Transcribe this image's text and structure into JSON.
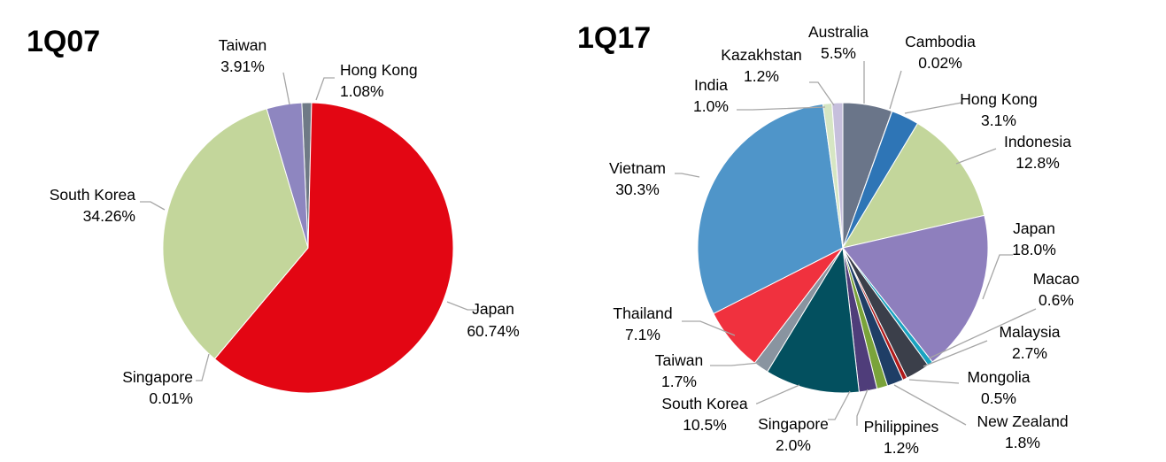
{
  "chart_data": [
    {
      "type": "pie",
      "title": "1Q07",
      "unit": "%",
      "slices": [
        {
          "label": "Hong Kong",
          "value_text": "1.08%",
          "value": 1.08,
          "color": "#6f7a86"
        },
        {
          "label": "Japan",
          "value_text": "60.74%",
          "value": 60.74,
          "color": "#e30613"
        },
        {
          "label": "Singapore",
          "value_text": "0.01%",
          "value": 0.01,
          "color": "#c9d6ad"
        },
        {
          "label": "South Korea",
          "value_text": "34.26%",
          "value": 34.26,
          "color": "#c3d69b"
        },
        {
          "label": "Taiwan",
          "value_text": "3.91%",
          "value": 3.91,
          "color": "#8e86c0"
        }
      ]
    },
    {
      "type": "pie",
      "title": "1Q17",
      "unit": "%",
      "slices": [
        {
          "label": "Australia",
          "value_text": "5.5%",
          "value": 5.5,
          "color": "#6a7589"
        },
        {
          "label": "Cambodia",
          "value_text": "0.02%",
          "value": 0.02,
          "color": "#4a5570"
        },
        {
          "label": "Hong Kong",
          "value_text": "3.1%",
          "value": 3.1,
          "color": "#2e75b6"
        },
        {
          "label": "Indonesia",
          "value_text": "12.8%",
          "value": 12.8,
          "color": "#c3d69b"
        },
        {
          "label": "Japan",
          "value_text": "18.0%",
          "value": 18.0,
          "color": "#8e7fbd"
        },
        {
          "label": "Macao",
          "value_text": "0.6%",
          "value": 0.6,
          "color": "#1aa3c0"
        },
        {
          "label": "Malaysia",
          "value_text": "2.7%",
          "value": 2.7,
          "color": "#3b3f4a"
        },
        {
          "label": "Mongolia",
          "value_text": "0.5%",
          "value": 0.5,
          "color": "#b01a1a"
        },
        {
          "label": "New Zealand",
          "value_text": "1.8%",
          "value": 1.8,
          "color": "#1f3e66"
        },
        {
          "label": "Philippines",
          "value_text": "1.2%",
          "value": 1.2,
          "color": "#7aa33a"
        },
        {
          "label": "Singapore",
          "value_text": "2.0%",
          "value": 2.0,
          "color": "#4f3d7a"
        },
        {
          "label": "South Korea",
          "value_text": "10.5%",
          "value": 10.5,
          "color": "#03505f"
        },
        {
          "label": "Taiwan",
          "value_text": "1.7%",
          "value": 1.7,
          "color": "#8994a0"
        },
        {
          "label": "Thailand",
          "value_text": "7.1%",
          "value": 7.1,
          "color": "#f0313e"
        },
        {
          "label": "Vietnam",
          "value_text": "30.3%",
          "value": 30.3,
          "color": "#4f95c9"
        },
        {
          "label": "India",
          "value_text": "1.0%",
          "value": 1.0,
          "color": "#d6e6c3"
        },
        {
          "label": "Kazakhstan",
          "value_text": "1.2%",
          "value": 1.2,
          "color": "#c6bfdc"
        }
      ]
    }
  ]
}
